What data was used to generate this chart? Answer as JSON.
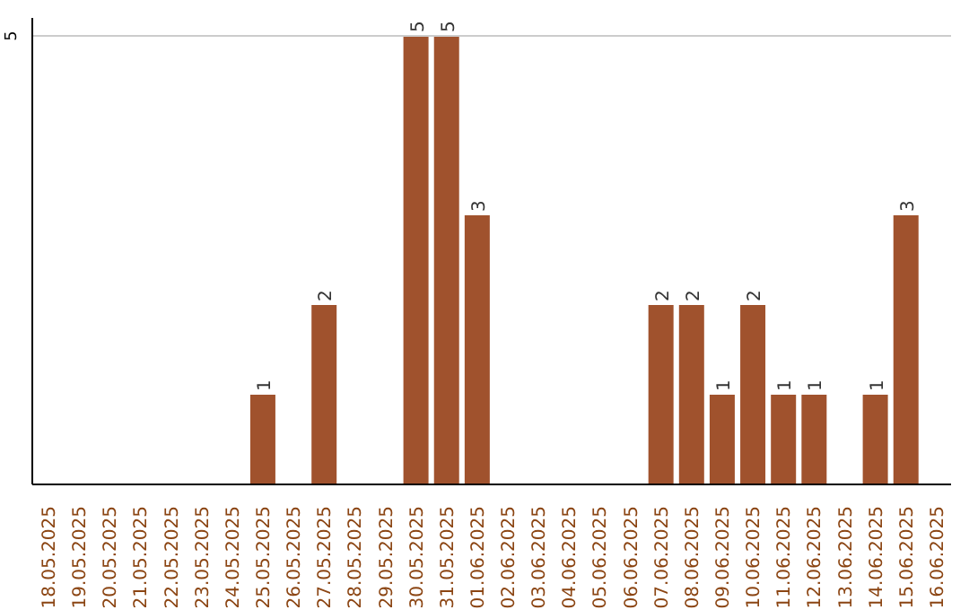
{
  "chart_data": {
    "type": "bar",
    "categories": [
      "18.05.2025",
      "19.05.2025",
      "20.05.2025",
      "21.05.2025",
      "22.05.2025",
      "23.05.2025",
      "24.05.2025",
      "25.05.2025",
      "26.05.2025",
      "27.05.2025",
      "28.05.2025",
      "29.05.2025",
      "30.05.2025",
      "31.05.2025",
      "01.06.2025",
      "02.06.2025",
      "03.06.2025",
      "04.06.2025",
      "05.06.2025",
      "06.06.2025",
      "07.06.2025",
      "08.06.2025",
      "09.06.2025",
      "10.06.2025",
      "11.06.2025",
      "12.06.2025",
      "13.06.2025",
      "14.06.2025",
      "15.06.2025",
      "16.06.2025"
    ],
    "values": [
      0,
      0,
      0,
      0,
      0,
      0,
      0,
      1,
      0,
      2,
      0,
      0,
      5,
      5,
      3,
      0,
      0,
      0,
      0,
      0,
      2,
      2,
      1,
      2,
      1,
      1,
      0,
      1,
      3,
      0
    ],
    "value_labels": [
      null,
      null,
      null,
      null,
      null,
      null,
      null,
      "1",
      null,
      "2",
      null,
      null,
      "5",
      "5",
      "3",
      null,
      null,
      null,
      null,
      null,
      "2",
      "2",
      "1",
      "2",
      "1",
      "1",
      null,
      "1",
      "3",
      null
    ],
    "color": "#a0522d",
    "ylim": [
      0,
      5.2
    ],
    "yticks": [
      5
    ],
    "grid": "y"
  }
}
